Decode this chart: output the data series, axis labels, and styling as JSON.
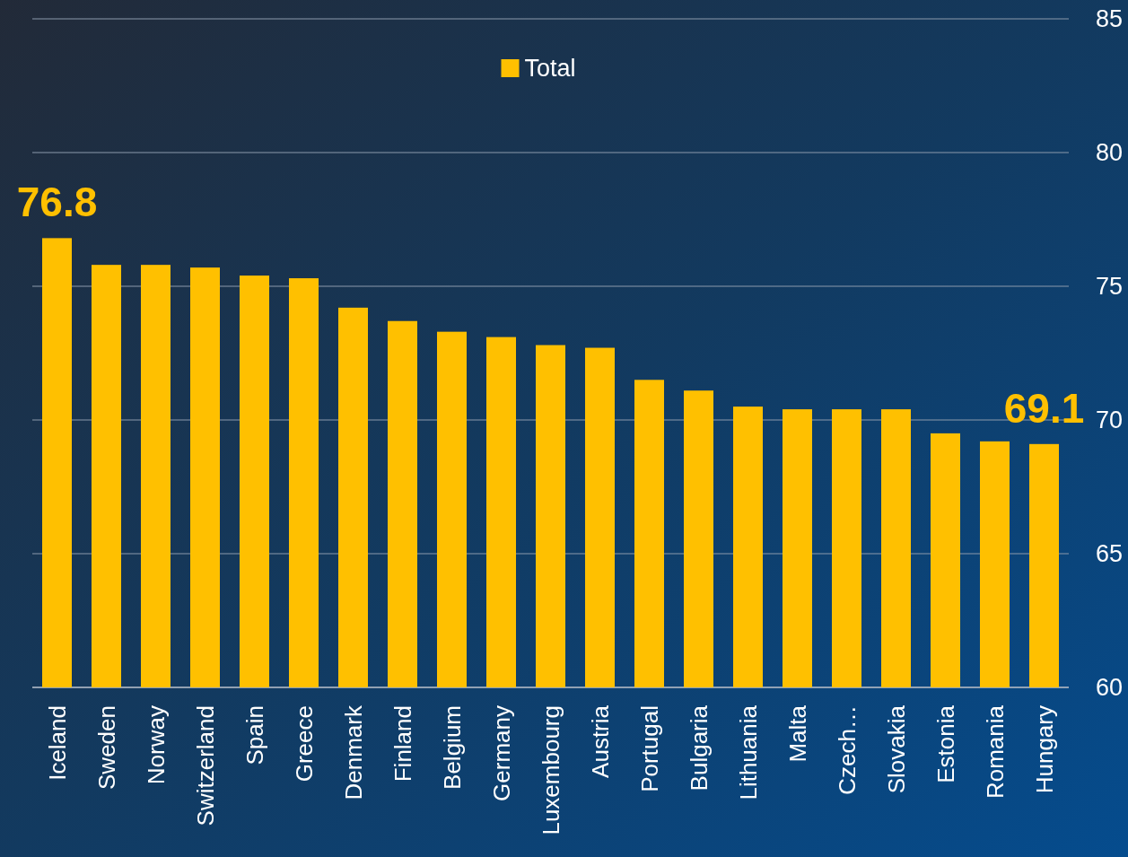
{
  "chart_data": {
    "type": "bar",
    "categories": [
      "Iceland",
      "Sweden",
      "Norway",
      "Switzerland",
      "Spain",
      "Greece",
      "Denmark",
      "Finland",
      "Belgium",
      "Germany",
      "Luxembourg",
      "Austria",
      "Portugal",
      "Bulgaria",
      "Lithuania",
      "Malta",
      "Czech…",
      "Slovakia",
      "Estonia",
      "Romania",
      "Hungary"
    ],
    "series": [
      {
        "name": "Total",
        "color": "#ffc000",
        "values": [
          76.8,
          75.8,
          75.8,
          75.7,
          75.4,
          75.3,
          74.2,
          73.7,
          73.3,
          73.1,
          72.8,
          72.7,
          71.5,
          71.1,
          70.5,
          70.4,
          70.4,
          70.4,
          69.5,
          69.2,
          69.1
        ],
        "value_labels": [
          "76.8",
          null,
          null,
          null,
          null,
          null,
          null,
          null,
          null,
          null,
          null,
          null,
          null,
          null,
          null,
          null,
          null,
          null,
          null,
          null,
          "69.1"
        ]
      }
    ],
    "ylim": [
      60,
      85
    ],
    "yticks": [
      60,
      65,
      70,
      75,
      80,
      85
    ],
    "grid": "y",
    "legend": "top"
  }
}
